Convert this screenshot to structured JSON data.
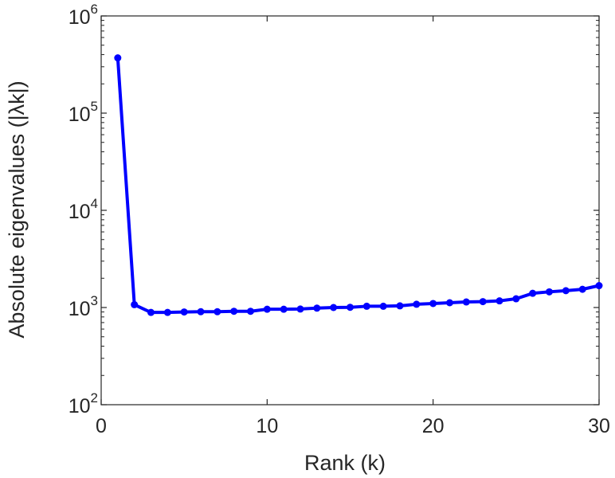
{
  "chart_data": {
    "type": "line",
    "title": "",
    "xlabel": "Rank (k)",
    "ylabel": "Absolute eigenvalues (|λk|)",
    "xlim": [
      0,
      30
    ],
    "ylim": [
      100,
      1000000
    ],
    "yscale": "log",
    "grid": false,
    "x_ticks": [
      {
        "value": 0,
        "label": "0"
      },
      {
        "value": 10,
        "label": "10"
      },
      {
        "value": 20,
        "label": "20"
      },
      {
        "value": 30,
        "label": "30"
      }
    ],
    "y_ticks": [
      {
        "value": 100,
        "base": "10",
        "exp": "2"
      },
      {
        "value": 1000,
        "base": "10",
        "exp": "3"
      },
      {
        "value": 10000,
        "base": "10",
        "exp": "4"
      },
      {
        "value": 100000,
        "base": "10",
        "exp": "5"
      },
      {
        "value": 1000000,
        "base": "10",
        "exp": "6"
      }
    ],
    "series": [
      {
        "color": "#0000ff",
        "x": [
          1,
          2,
          3,
          4,
          5,
          6,
          7,
          8,
          9,
          10,
          11,
          12,
          13,
          14,
          15,
          16,
          17,
          18,
          19,
          20,
          21,
          22,
          23,
          24,
          25,
          26,
          27,
          28,
          29,
          30
        ],
        "values": [
          370000,
          1070,
          890,
          890,
          900,
          905,
          905,
          915,
          915,
          960,
          960,
          965,
          985,
          1000,
          1005,
          1030,
          1030,
          1040,
          1080,
          1100,
          1120,
          1140,
          1150,
          1170,
          1230,
          1400,
          1450,
          1490,
          1540,
          1680
        ]
      }
    ]
  }
}
